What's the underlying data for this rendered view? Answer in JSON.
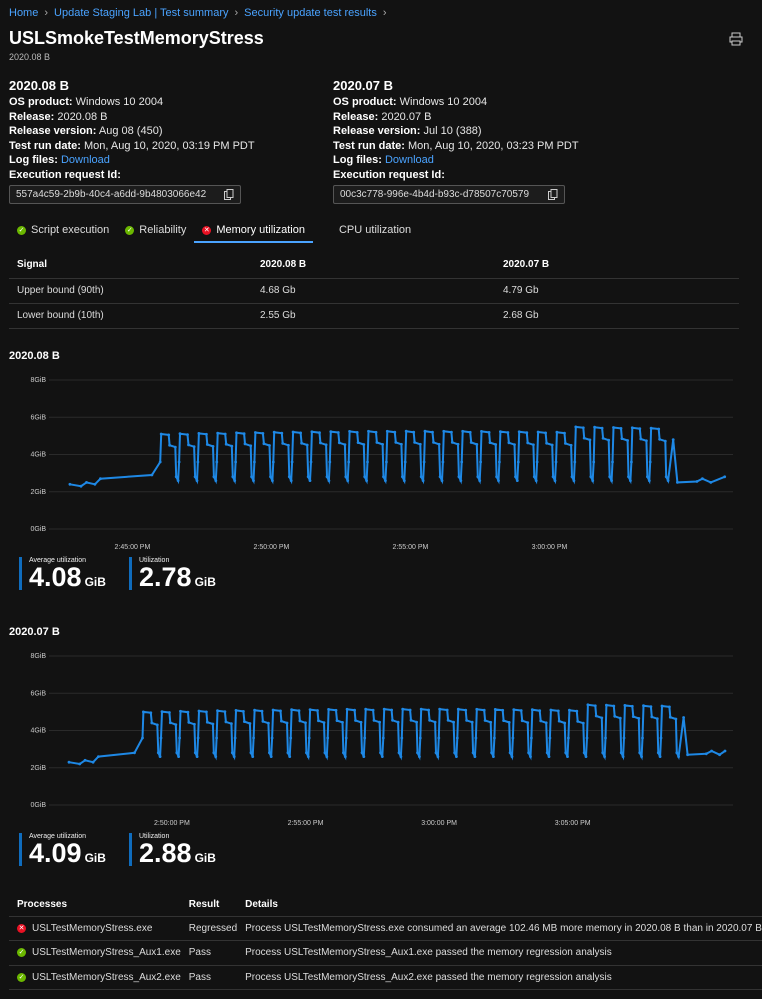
{
  "breadcrumb": [
    "Home",
    "Update Staging Lab | Test summary",
    "Security update test results"
  ],
  "page": {
    "title": "USLSmokeTestMemoryStress",
    "subtitle": "2020.08 B"
  },
  "builds": [
    {
      "title": "2020.08 B",
      "os_product_label": "OS product:",
      "os_product": "Windows 10 2004",
      "release_label": "Release:",
      "release": "2020.08 B",
      "release_version_label": "Release version:",
      "release_version": "Aug 08 (450)",
      "test_run_date_label": "Test run date:",
      "test_run_date": "Mon, Aug 10, 2020, 03:19 PM PDT",
      "log_files_label": "Log files:",
      "log_files_link": "Download",
      "exec_req_label": "Execution request Id:",
      "exec_req_id": "557a4c59-2b9b-40c4-a6dd-9b4803066e42"
    },
    {
      "title": "2020.07 B",
      "os_product_label": "OS product:",
      "os_product": "Windows 10 2004",
      "release_label": "Release:",
      "release": "2020.07 B",
      "release_version_label": "Release version:",
      "release_version": "Jul 10 (388)",
      "test_run_date_label": "Test run date:",
      "test_run_date": "Mon, Aug 10, 2020, 03:23 PM PDT",
      "log_files_label": "Log files:",
      "log_files_link": "Download",
      "exec_req_label": "Execution request Id:",
      "exec_req_id": "00c3c778-996e-4b4d-b93c-d78507c70579"
    }
  ],
  "tabs": [
    {
      "label": "Script execution",
      "status": "ok"
    },
    {
      "label": "Reliability",
      "status": "ok"
    },
    {
      "label": "Memory utilization",
      "status": "error",
      "active": true
    },
    {
      "label": "CPU utilization",
      "status": "none"
    }
  ],
  "signal_table": {
    "headers": [
      "Signal",
      "2020.08 B",
      "2020.07 B"
    ],
    "rows": [
      [
        "Upper bound (90th)",
        "4.68 Gb",
        "4.79 Gb"
      ],
      [
        "Lower bound (10th)",
        "2.55 Gb",
        "2.68 Gb"
      ]
    ]
  },
  "charts_meta": [
    {
      "section_title": "2020.08 B",
      "avg_label": "Average utilization",
      "avg_value": "4.08",
      "avg_unit": "GiB",
      "util_label": "Utilization",
      "util_value": "2.78",
      "util_unit": "GiB"
    },
    {
      "section_title": "2020.07 B",
      "avg_label": "Average utilization",
      "avg_value": "4.09",
      "avg_unit": "GiB",
      "util_label": "Utilization",
      "util_value": "2.88",
      "util_unit": "GiB"
    }
  ],
  "chart_data": [
    {
      "type": "line",
      "title": "2020.08 B",
      "ylim": [
        0,
        8
      ],
      "y_ticks": [
        "0GiB",
        "2GiB",
        "4GiB",
        "6GiB",
        "8GiB"
      ],
      "y_tick_values": [
        0,
        2,
        4,
        6,
        8
      ],
      "x_tick_labels": [
        "2:45:00 PM",
        "2:50:00 PM",
        "2:55:00 PM",
        "3:00:00 PM"
      ],
      "xlim_minutes": [
        -3.0,
        21.6
      ],
      "x_tick_minutes": [
        0,
        5,
        10,
        15
      ],
      "series": [
        {
          "color": "#1e88e5",
          "baseline": 2.4,
          "ramp_end": 2.9,
          "plateau_start": 1.0,
          "plateau_end": 19.3,
          "cycle_high": 5.1,
          "cycle_low": 2.6,
          "cycles": 27,
          "tail_level": 2.5,
          "tail_end": 2.8
        }
      ]
    },
    {
      "type": "line",
      "title": "2020.07 B",
      "ylim": [
        0,
        8
      ],
      "y_ticks": [
        "0GiB",
        "2GiB",
        "4GiB",
        "6GiB",
        "8GiB"
      ],
      "y_tick_values": [
        0,
        2,
        4,
        6,
        8
      ],
      "x_tick_labels": [
        "2:50:00 PM",
        "2:55:00 PM",
        "3:00:00 PM",
        "3:05:00 PM"
      ],
      "xlim_minutes": [
        -4.6,
        21.0
      ],
      "x_tick_minutes": [
        0,
        5,
        10,
        15
      ],
      "series": [
        {
          "color": "#1e88e5",
          "baseline": 2.3,
          "ramp_end": 2.8,
          "plateau_start": -1.1,
          "plateau_end": 19.0,
          "cycle_high": 5.0,
          "cycle_low": 2.6,
          "cycles": 29,
          "tail_level": 2.7,
          "tail_end": 2.9
        }
      ]
    }
  ],
  "processes": {
    "headers": [
      "Processes",
      "Result",
      "Details"
    ],
    "rows": [
      {
        "name": "USLTestMemoryStress.exe",
        "status": "error",
        "result": "Regressed",
        "details": "Process USLTestMemoryStress.exe consumed an average 102.46 MB more memory in 2020.08 B than in 2020.07 B"
      },
      {
        "name": "USLTestMemoryStress_Aux1.exe",
        "status": "ok",
        "result": "Pass",
        "details": "Process USLTestMemoryStress_Aux1.exe passed the memory regression analysis"
      },
      {
        "name": "USLTestMemoryStress_Aux2.exe",
        "status": "ok",
        "result": "Pass",
        "details": "Process USLTestMemoryStress_Aux2.exe passed the memory regression analysis"
      }
    ]
  }
}
